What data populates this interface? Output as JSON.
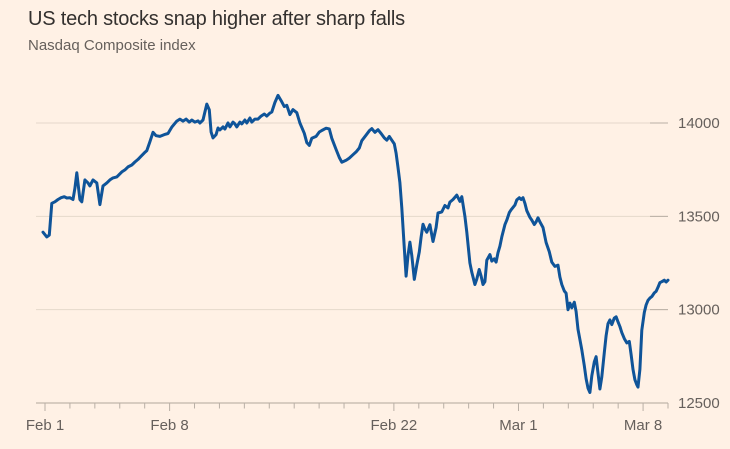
{
  "header": {
    "title": "US tech stocks snap higher after sharp falls",
    "subtitle": "Nasdaq Composite index"
  },
  "colors": {
    "background": "#fff1e5",
    "title_text": "#33302e",
    "muted_text": "#66605c",
    "grid_line": "#e4d8cb",
    "axis_line": "#b0a69c",
    "tick_mark": "#b9afa5",
    "series_line": "#0f5499"
  },
  "chart_data": {
    "type": "line",
    "title": "US tech stocks snap higher after sharp falls",
    "subtitle": "Nasdaq Composite index",
    "legend": "none",
    "grid": "horizontal",
    "y_axis": {
      "side": "right",
      "min": 12500,
      "max": 14000,
      "ticks": [
        14000,
        13500,
        13000,
        12500
      ]
    },
    "x_axis": {
      "tick_count": 26,
      "labels": [
        {
          "tick": 0,
          "label": "Feb 1"
        },
        {
          "tick": 5,
          "label": "Feb 8"
        },
        {
          "tick": 14,
          "label": "Feb 22"
        },
        {
          "tick": 19,
          "label": "Mar 1"
        },
        {
          "tick": 24,
          "label": "Mar 8"
        }
      ]
    },
    "series": [
      {
        "name": "Nasdaq Composite index",
        "color": "#0f5499",
        "points": [
          [
            0.0,
            13415
          ],
          [
            0.006,
            13390
          ],
          [
            0.01,
            13400
          ],
          [
            0.014,
            13570
          ],
          [
            0.019,
            13578
          ],
          [
            0.024,
            13590
          ],
          [
            0.029,
            13600
          ],
          [
            0.034,
            13605
          ],
          [
            0.038,
            13598
          ],
          [
            0.043,
            13600
          ],
          [
            0.048,
            13590
          ],
          [
            0.051,
            13650
          ],
          [
            0.054,
            13733
          ],
          [
            0.059,
            13590
          ],
          [
            0.062,
            13578
          ],
          [
            0.067,
            13695
          ],
          [
            0.072,
            13679
          ],
          [
            0.075,
            13663
          ],
          [
            0.08,
            13695
          ],
          [
            0.086,
            13679
          ],
          [
            0.091,
            13563
          ],
          [
            0.096,
            13663
          ],
          [
            0.102,
            13679
          ],
          [
            0.107,
            13695
          ],
          [
            0.112,
            13706
          ],
          [
            0.118,
            13711
          ],
          [
            0.126,
            13738
          ],
          [
            0.131,
            13749
          ],
          [
            0.136,
            13765
          ],
          [
            0.142,
            13775
          ],
          [
            0.147,
            13791
          ],
          [
            0.152,
            13805
          ],
          [
            0.157,
            13822
          ],
          [
            0.162,
            13840
          ],
          [
            0.166,
            13852
          ],
          [
            0.171,
            13900
          ],
          [
            0.176,
            13950
          ],
          [
            0.181,
            13932
          ],
          [
            0.187,
            13928
          ],
          [
            0.194,
            13938
          ],
          [
            0.2,
            13944
          ],
          [
            0.206,
            13978
          ],
          [
            0.214,
            14010
          ],
          [
            0.219,
            14021
          ],
          [
            0.224,
            14010
          ],
          [
            0.229,
            14021
          ],
          [
            0.234,
            14005
          ],
          [
            0.238,
            14016
          ],
          [
            0.243,
            14005
          ],
          [
            0.248,
            14011
          ],
          [
            0.251,
            14000
          ],
          [
            0.256,
            14016
          ],
          [
            0.259,
            14059
          ],
          [
            0.262,
            14101
          ],
          [
            0.266,
            14070
          ],
          [
            0.269,
            13952
          ],
          [
            0.272,
            13920
          ],
          [
            0.277,
            13938
          ],
          [
            0.28,
            13973
          ],
          [
            0.283,
            13963
          ],
          [
            0.288,
            13979
          ],
          [
            0.291,
            13968
          ],
          [
            0.296,
            14000
          ],
          [
            0.299,
            13979
          ],
          [
            0.304,
            14005
          ],
          [
            0.307,
            13995
          ],
          [
            0.31,
            13979
          ],
          [
            0.315,
            14005
          ],
          [
            0.318,
            13995
          ],
          [
            0.323,
            14016
          ],
          [
            0.326,
            14000
          ],
          [
            0.331,
            14027
          ],
          [
            0.334,
            14005
          ],
          [
            0.339,
            14021
          ],
          [
            0.344,
            14021
          ],
          [
            0.349,
            14037
          ],
          [
            0.354,
            14048
          ],
          [
            0.358,
            14037
          ],
          [
            0.363,
            14053
          ],
          [
            0.366,
            14059
          ],
          [
            0.371,
            14110
          ],
          [
            0.376,
            14148
          ],
          [
            0.381,
            14120
          ],
          [
            0.386,
            14088
          ],
          [
            0.39,
            14095
          ],
          [
            0.395,
            14045
          ],
          [
            0.4,
            14072
          ],
          [
            0.406,
            14055
          ],
          [
            0.411,
            14000
          ],
          [
            0.418,
            13945
          ],
          [
            0.422,
            13895
          ],
          [
            0.426,
            13880
          ],
          [
            0.43,
            13918
          ],
          [
            0.437,
            13928
          ],
          [
            0.442,
            13952
          ],
          [
            0.446,
            13960
          ],
          [
            0.453,
            13972
          ],
          [
            0.458,
            13968
          ],
          [
            0.462,
            13918
          ],
          [
            0.469,
            13858
          ],
          [
            0.474,
            13815
          ],
          [
            0.478,
            13790
          ],
          [
            0.485,
            13800
          ],
          [
            0.49,
            13812
          ],
          [
            0.496,
            13830
          ],
          [
            0.501,
            13845
          ],
          [
            0.506,
            13866
          ],
          [
            0.51,
            13905
          ],
          [
            0.517,
            13935
          ],
          [
            0.522,
            13958
          ],
          [
            0.526,
            13970
          ],
          [
            0.531,
            13950
          ],
          [
            0.536,
            13964
          ],
          [
            0.541,
            13944
          ],
          [
            0.546,
            13920
          ],
          [
            0.55,
            13908
          ],
          [
            0.554,
            13928
          ],
          [
            0.558,
            13908
          ],
          [
            0.562,
            13888
          ],
          [
            0.565,
            13838
          ],
          [
            0.568,
            13762
          ],
          [
            0.571,
            13680
          ],
          [
            0.574,
            13545
          ],
          [
            0.578,
            13330
          ],
          [
            0.581,
            13180
          ],
          [
            0.584,
            13290
          ],
          [
            0.587,
            13362
          ],
          [
            0.59,
            13290
          ],
          [
            0.594,
            13162
          ],
          [
            0.598,
            13240
          ],
          [
            0.602,
            13310
          ],
          [
            0.605,
            13388
          ],
          [
            0.608,
            13458
          ],
          [
            0.611,
            13432
          ],
          [
            0.614,
            13415
          ],
          [
            0.619,
            13455
          ],
          [
            0.624,
            13365
          ],
          [
            0.629,
            13440
          ],
          [
            0.632,
            13518
          ],
          [
            0.638,
            13524
          ],
          [
            0.643,
            13558
          ],
          [
            0.648,
            13545
          ],
          [
            0.651,
            13576
          ],
          [
            0.656,
            13590
          ],
          [
            0.662,
            13614
          ],
          [
            0.667,
            13580
          ],
          [
            0.67,
            13605
          ],
          [
            0.675,
            13500
          ],
          [
            0.678,
            13415
          ],
          [
            0.683,
            13250
          ],
          [
            0.686,
            13200
          ],
          [
            0.691,
            13135
          ],
          [
            0.694,
            13162
          ],
          [
            0.698,
            13215
          ],
          [
            0.701,
            13180
          ],
          [
            0.704,
            13135
          ],
          [
            0.707,
            13150
          ],
          [
            0.71,
            13265
          ],
          [
            0.715,
            13295
          ],
          [
            0.718,
            13260
          ],
          [
            0.722,
            13272
          ],
          [
            0.725,
            13255
          ],
          [
            0.728,
            13305
          ],
          [
            0.731,
            13340
          ],
          [
            0.734,
            13390
          ],
          [
            0.739,
            13455
          ],
          [
            0.742,
            13480
          ],
          [
            0.746,
            13520
          ],
          [
            0.749,
            13535
          ],
          [
            0.752,
            13548
          ],
          [
            0.755,
            13560
          ],
          [
            0.758,
            13588
          ],
          [
            0.762,
            13600
          ],
          [
            0.765,
            13590
          ],
          [
            0.768,
            13600
          ],
          [
            0.771,
            13570
          ],
          [
            0.774,
            13530
          ],
          [
            0.779,
            13495
          ],
          [
            0.782,
            13480
          ],
          [
            0.786,
            13456
          ],
          [
            0.789,
            13470
          ],
          [
            0.792,
            13492
          ],
          [
            0.795,
            13470
          ],
          [
            0.8,
            13440
          ],
          [
            0.805,
            13360
          ],
          [
            0.81,
            13310
          ],
          [
            0.814,
            13255
          ],
          [
            0.819,
            13232
          ],
          [
            0.824,
            13238
          ],
          [
            0.827,
            13175
          ],
          [
            0.83,
            13135
          ],
          [
            0.834,
            13100
          ],
          [
            0.837,
            13088
          ],
          [
            0.84,
            13000
          ],
          [
            0.843,
            13035
          ],
          [
            0.846,
            13010
          ],
          [
            0.85,
            13040
          ],
          [
            0.853,
            12990
          ],
          [
            0.856,
            12895
          ],
          [
            0.859,
            12840
          ],
          [
            0.862,
            12785
          ],
          [
            0.866,
            12700
          ],
          [
            0.869,
            12630
          ],
          [
            0.872,
            12580
          ],
          [
            0.875,
            12556
          ],
          [
            0.878,
            12645
          ],
          [
            0.882,
            12720
          ],
          [
            0.885,
            12748
          ],
          [
            0.888,
            12660
          ],
          [
            0.891,
            12575
          ],
          [
            0.894,
            12640
          ],
          [
            0.898,
            12770
          ],
          [
            0.901,
            12860
          ],
          [
            0.904,
            12925
          ],
          [
            0.907,
            12945
          ],
          [
            0.91,
            12920
          ],
          [
            0.914,
            12955
          ],
          [
            0.917,
            12962
          ],
          [
            0.92,
            12935
          ],
          [
            0.923,
            12910
          ],
          [
            0.926,
            12877
          ],
          [
            0.93,
            12845
          ],
          [
            0.934,
            12822
          ],
          [
            0.938,
            12830
          ],
          [
            0.941,
            12760
          ],
          [
            0.944,
            12680
          ],
          [
            0.947,
            12625
          ],
          [
            0.95,
            12598
          ],
          [
            0.952,
            12585
          ],
          [
            0.955,
            12680
          ],
          [
            0.958,
            12890
          ],
          [
            0.962,
            12985
          ],
          [
            0.965,
            13025
          ],
          [
            0.968,
            13050
          ],
          [
            0.971,
            13062
          ],
          [
            0.974,
            13070
          ],
          [
            0.978,
            13090
          ],
          [
            0.981,
            13098
          ],
          [
            0.984,
            13120
          ],
          [
            0.987,
            13145
          ],
          [
            0.99,
            13150
          ],
          [
            0.994,
            13158
          ],
          [
            0.997,
            13148
          ],
          [
            1.0,
            13158
          ]
        ]
      }
    ]
  }
}
